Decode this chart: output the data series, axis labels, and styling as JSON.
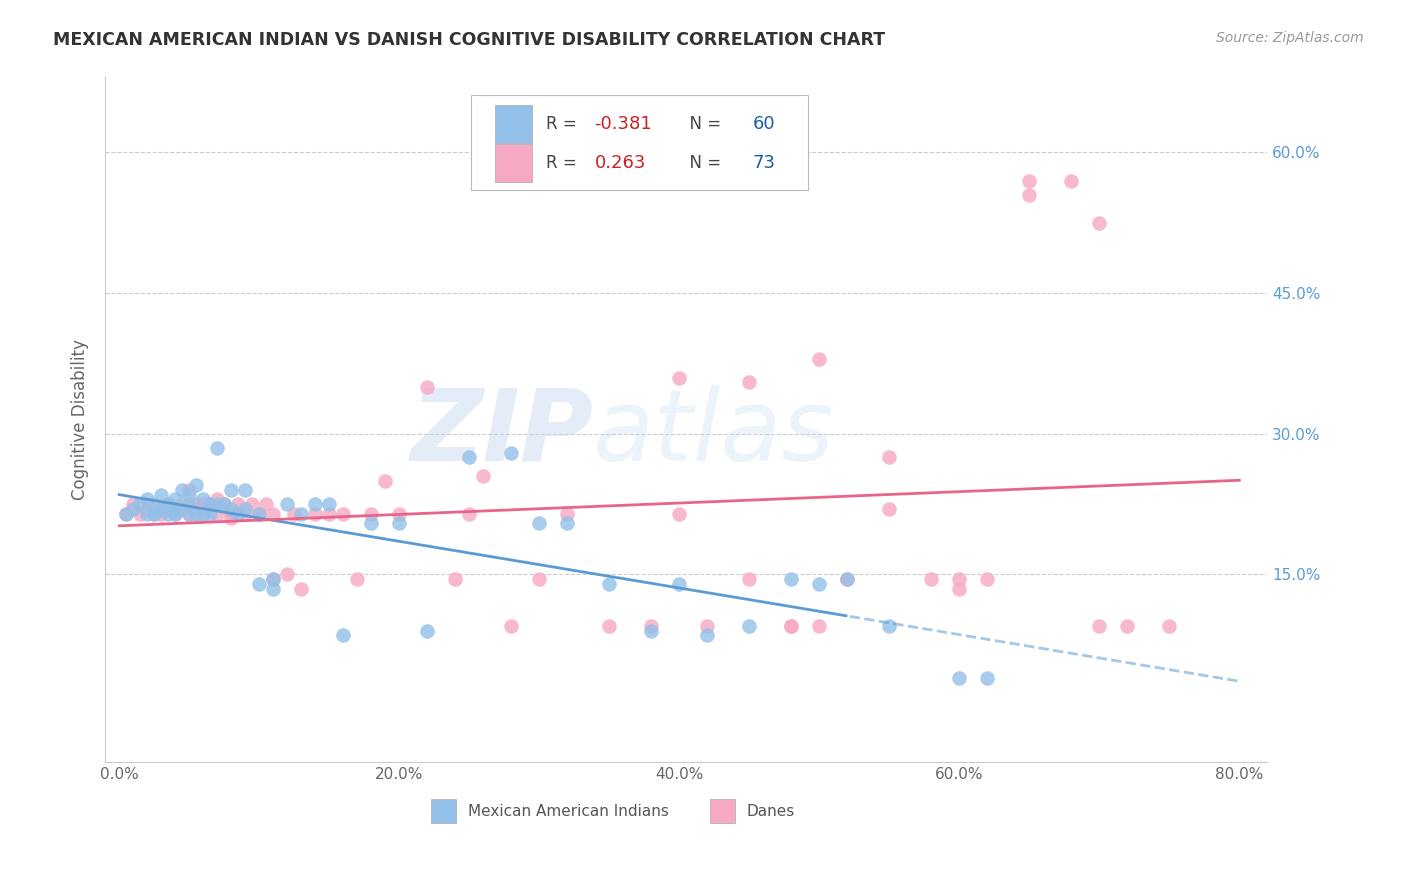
{
  "title": "MEXICAN AMERICAN INDIAN VS DANISH COGNITIVE DISABILITY CORRELATION CHART",
  "source": "Source: ZipAtlas.com",
  "ylabel": "Cognitive Disability",
  "xlabel_ticks": [
    "0.0%",
    "20.0%",
    "40.0%",
    "60.0%",
    "80.0%"
  ],
  "xlabel_vals": [
    0.0,
    0.2,
    0.4,
    0.6,
    0.8
  ],
  "ylabel_ticks": [
    "15.0%",
    "30.0%",
    "45.0%",
    "60.0%"
  ],
  "ylabel_vals": [
    0.15,
    0.3,
    0.45,
    0.6
  ],
  "xlim": [
    -0.01,
    0.82
  ],
  "ylim": [
    -0.05,
    0.68
  ],
  "legend1_R": "-0.381",
  "legend1_N": "60",
  "legend2_R": "0.263",
  "legend2_N": "73",
  "blue_color": "#92c0e8",
  "pink_color": "#f7a8c4",
  "blue_line_color": "#5b9bd5",
  "pink_line_color": "#e8658a",
  "watermark_zip": "ZIP",
  "watermark_atlas": "atlas",
  "blue_scatter_x": [
    0.005,
    0.01,
    0.015,
    0.02,
    0.02,
    0.025,
    0.025,
    0.03,
    0.03,
    0.035,
    0.035,
    0.04,
    0.04,
    0.04,
    0.045,
    0.045,
    0.05,
    0.05,
    0.05,
    0.055,
    0.055,
    0.06,
    0.06,
    0.065,
    0.065,
    0.07,
    0.07,
    0.075,
    0.08,
    0.08,
    0.085,
    0.09,
    0.09,
    0.1,
    0.1,
    0.11,
    0.11,
    0.12,
    0.13,
    0.14,
    0.15,
    0.16,
    0.18,
    0.2,
    0.22,
    0.25,
    0.28,
    0.3,
    0.32,
    0.35,
    0.38,
    0.4,
    0.42,
    0.45,
    0.48,
    0.5,
    0.52,
    0.55,
    0.6,
    0.62
  ],
  "blue_scatter_y": [
    0.215,
    0.22,
    0.225,
    0.23,
    0.215,
    0.22,
    0.215,
    0.235,
    0.22,
    0.225,
    0.215,
    0.23,
    0.22,
    0.215,
    0.24,
    0.22,
    0.235,
    0.225,
    0.215,
    0.245,
    0.215,
    0.23,
    0.215,
    0.225,
    0.215,
    0.285,
    0.225,
    0.225,
    0.24,
    0.22,
    0.215,
    0.24,
    0.22,
    0.215,
    0.14,
    0.145,
    0.135,
    0.225,
    0.215,
    0.225,
    0.225,
    0.085,
    0.205,
    0.205,
    0.09,
    0.275,
    0.28,
    0.205,
    0.205,
    0.14,
    0.09,
    0.14,
    0.085,
    0.095,
    0.145,
    0.14,
    0.145,
    0.095,
    0.04,
    0.04
  ],
  "pink_scatter_x": [
    0.005,
    0.01,
    0.015,
    0.02,
    0.025,
    0.025,
    0.03,
    0.03,
    0.035,
    0.04,
    0.04,
    0.045,
    0.05,
    0.05,
    0.055,
    0.055,
    0.06,
    0.06,
    0.065,
    0.07,
    0.07,
    0.075,
    0.08,
    0.08,
    0.085,
    0.09,
    0.095,
    0.1,
    0.105,
    0.11,
    0.11,
    0.12,
    0.125,
    0.13,
    0.14,
    0.15,
    0.16,
    0.17,
    0.18,
    0.19,
    0.2,
    0.22,
    0.24,
    0.25,
    0.26,
    0.28,
    0.3,
    0.32,
    0.35,
    0.38,
    0.4,
    0.42,
    0.45,
    0.48,
    0.5,
    0.52,
    0.55,
    0.58,
    0.6,
    0.62,
    0.65,
    0.68,
    0.7,
    0.72,
    0.75,
    0.5,
    0.55,
    0.6,
    0.65,
    0.7,
    0.4,
    0.45,
    0.48
  ],
  "pink_scatter_y": [
    0.215,
    0.225,
    0.215,
    0.22,
    0.225,
    0.215,
    0.22,
    0.215,
    0.225,
    0.22,
    0.215,
    0.225,
    0.24,
    0.215,
    0.225,
    0.215,
    0.225,
    0.215,
    0.225,
    0.23,
    0.215,
    0.225,
    0.215,
    0.21,
    0.225,
    0.215,
    0.225,
    0.215,
    0.225,
    0.215,
    0.145,
    0.15,
    0.215,
    0.135,
    0.215,
    0.215,
    0.215,
    0.145,
    0.215,
    0.25,
    0.215,
    0.35,
    0.145,
    0.215,
    0.255,
    0.095,
    0.145,
    0.215,
    0.095,
    0.095,
    0.215,
    0.095,
    0.355,
    0.095,
    0.095,
    0.145,
    0.22,
    0.145,
    0.145,
    0.145,
    0.555,
    0.57,
    0.525,
    0.095,
    0.095,
    0.38,
    0.275,
    0.135,
    0.57,
    0.095,
    0.36,
    0.145,
    0.095
  ]
}
